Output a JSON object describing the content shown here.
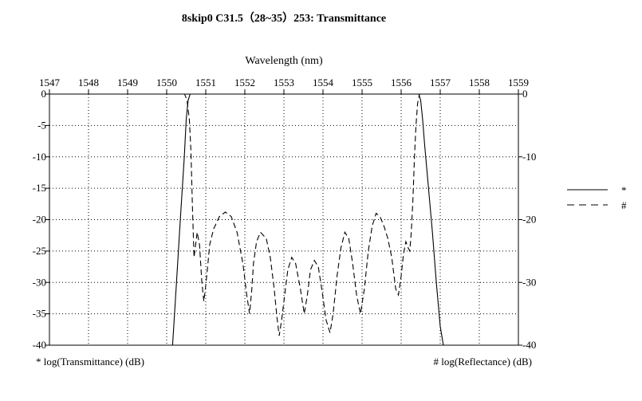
{
  "chart_data": {
    "type": "line",
    "title": "8skip0 C31.5（28~35）253: Transmittance",
    "xlabel": "Wavelength (nm)",
    "x_axis_position": "top",
    "xlim": [
      1547,
      1559
    ],
    "x_ticks": [
      1547,
      1548,
      1549,
      1550,
      1551,
      1552,
      1553,
      1554,
      1555,
      1556,
      1557,
      1558,
      1559
    ],
    "left_axis": {
      "label": "* log(Transmittance) (dB)",
      "ylim": [
        -40,
        0
      ],
      "ticks": [
        0,
        -5,
        -10,
        -15,
        -20,
        -25,
        -30,
        -35,
        -40
      ]
    },
    "right_axis": {
      "label": "# log(Reflectance) (dB)",
      "ylim": [
        -40,
        0
      ],
      "ticks": [
        0,
        -10,
        -20,
        -30,
        -40
      ]
    },
    "grid": true,
    "legend_position": "right",
    "series": [
      {
        "name": "*",
        "axis": "left",
        "style": "solid",
        "color": "#000000",
        "x": [
          1550.15,
          1550.25,
          1550.35,
          1550.45,
          1550.5,
          1550.55,
          1550.6,
          1550.7,
          1551.0,
          1553.0,
          1555.0,
          1556.2,
          1556.45,
          1556.5,
          1556.55,
          1556.6,
          1556.7,
          1556.8,
          1556.9,
          1557.0,
          1557.08
        ],
        "y": [
          -40,
          -30,
          -20,
          -10,
          -4,
          -1,
          0,
          0,
          0,
          0,
          0,
          0,
          0,
          -1,
          -4,
          -8,
          -15,
          -22,
          -30,
          -37,
          -40
        ]
      },
      {
        "name": "#",
        "axis": "right",
        "style": "dashed",
        "color": "#000000",
        "x": [
          1550.2,
          1550.38,
          1550.46,
          1550.52,
          1550.58,
          1550.62,
          1550.66,
          1550.7,
          1550.74,
          1550.78,
          1550.84,
          1550.9,
          1550.95,
          1550.99,
          1551.04,
          1551.1,
          1551.2,
          1551.35,
          1551.5,
          1551.65,
          1551.8,
          1551.95,
          1552.05,
          1552.12,
          1552.18,
          1552.22,
          1552.3,
          1552.4,
          1552.55,
          1552.65,
          1552.75,
          1552.82,
          1552.88,
          1552.94,
          1553.02,
          1553.1,
          1553.2,
          1553.3,
          1553.42,
          1553.52,
          1553.6,
          1553.68,
          1553.78,
          1553.88,
          1553.98,
          1554.08,
          1554.18,
          1554.26,
          1554.36,
          1554.46,
          1554.56,
          1554.66,
          1554.76,
          1554.86,
          1554.96,
          1555.06,
          1555.16,
          1555.26,
          1555.36,
          1555.46,
          1555.56,
          1555.66,
          1555.76,
          1555.86,
          1555.93,
          1556.0,
          1556.06,
          1556.12,
          1556.18,
          1556.22,
          1556.26,
          1556.3,
          1556.34,
          1556.38,
          1556.42,
          1556.47,
          1556.55,
          1556.65,
          1556.8,
          1557.0
        ],
        "y": [
          0,
          0,
          0,
          -1,
          -4,
          -9,
          -18,
          -26,
          -24,
          -22,
          -24,
          -30,
          -33,
          -31,
          -28,
          -24,
          -21.5,
          -19.5,
          -18.8,
          -19.5,
          -22,
          -27,
          -32,
          -35,
          -31,
          -27,
          -23.5,
          -22,
          -23,
          -26,
          -31,
          -35.5,
          -38.5,
          -36,
          -32,
          -28,
          -26,
          -27,
          -31,
          -35,
          -32,
          -28,
          -26.5,
          -27.5,
          -31.5,
          -36,
          -38,
          -35,
          -29,
          -24.5,
          -22,
          -23,
          -27,
          -32,
          -35,
          -31,
          -25,
          -21,
          -19,
          -19.5,
          -21,
          -23,
          -26,
          -31,
          -32,
          -29,
          -25.5,
          -23.5,
          -24.5,
          -25,
          -22,
          -17,
          -10,
          -5,
          -1.5,
          0,
          0,
          0,
          0,
          0
        ]
      }
    ]
  }
}
